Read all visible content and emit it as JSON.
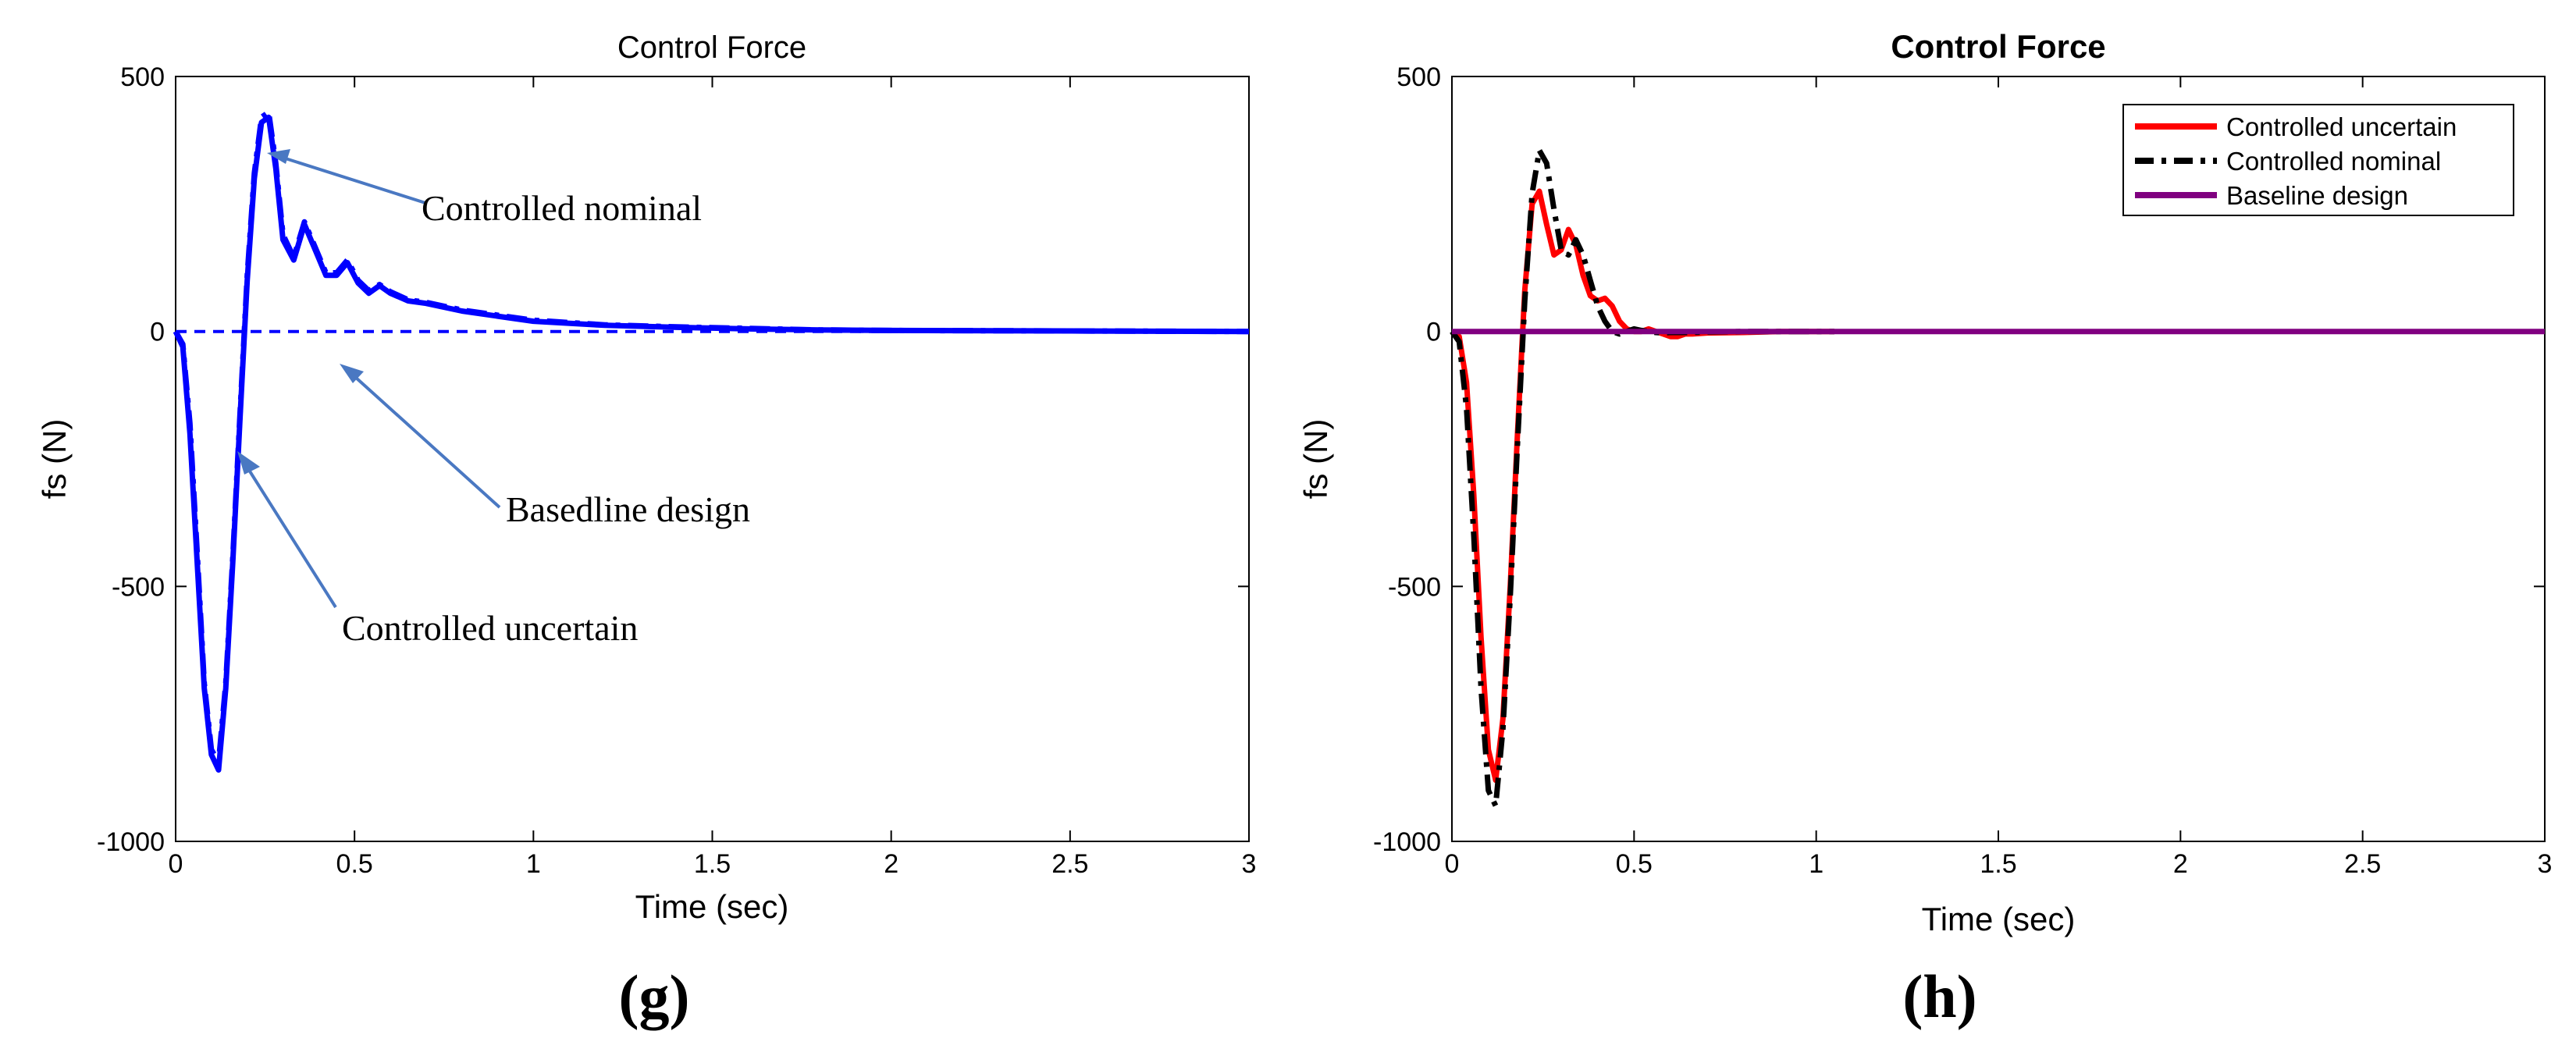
{
  "chart_data": [
    {
      "type": "line",
      "title": "Control Force",
      "xlabel": "Time (sec)",
      "ylabel": "fs (N)",
      "xlim": [
        0,
        3
      ],
      "ylim": [
        -1000,
        500
      ],
      "x_ticks": [
        "0",
        "0.5",
        "1",
        "1.5",
        "2",
        "2.5",
        "3"
      ],
      "y_ticks": [
        "-1000",
        "-500",
        "0",
        "500"
      ],
      "panel_label": "(g)",
      "grid": false,
      "series": [
        {
          "color": "#0000ff",
          "style": "solid",
          "x": [
            0,
            0.02,
            0.04,
            0.06,
            0.08,
            0.1,
            0.12,
            0.14,
            0.16,
            0.18,
            0.2,
            0.22,
            0.24,
            0.26,
            0.28,
            0.3,
            0.33,
            0.36,
            0.39,
            0.42,
            0.45,
            0.48,
            0.51,
            0.54,
            0.57,
            0.6,
            0.65,
            0.7,
            0.8,
            0.9,
            1.0,
            1.2,
            1.4,
            1.6,
            1.8,
            2.0,
            2.5,
            3.0
          ],
          "y": [
            0,
            -30,
            -200,
            -450,
            -700,
            -830,
            -860,
            -700,
            -450,
            -170,
            100,
            300,
            410,
            420,
            320,
            180,
            140,
            210,
            160,
            110,
            110,
            135,
            95,
            75,
            90,
            75,
            60,
            55,
            40,
            30,
            20,
            12,
            8,
            5,
            3,
            2,
            1,
            0
          ]
        },
        {
          "color": "#0000ff",
          "style": "dash-dot",
          "x": [
            0,
            0.02,
            0.04,
            0.06,
            0.08,
            0.1,
            0.12,
            0.14,
            0.16,
            0.18,
            0.2,
            0.22,
            0.24,
            0.26,
            0.28,
            0.3,
            0.33,
            0.36,
            0.39,
            0.42,
            0.45,
            0.48,
            0.51,
            0.54,
            0.57,
            0.6,
            0.65,
            0.7,
            0.8,
            0.9,
            1.0,
            1.2,
            1.4,
            1.6,
            1.8,
            2.0,
            2.5,
            3.0
          ],
          "y": [
            0,
            -25,
            -180,
            -430,
            -690,
            -820,
            -845,
            -690,
            -440,
            -160,
            110,
            310,
            420,
            430,
            330,
            190,
            145,
            215,
            165,
            115,
            115,
            140,
            100,
            80,
            92,
            78,
            62,
            57,
            42,
            32,
            22,
            13,
            9,
            6,
            3,
            2,
            1,
            0
          ]
        },
        {
          "color": "#0000ff",
          "style": "dashed",
          "x": [
            0,
            3
          ],
          "y": [
            0,
            0
          ]
        }
      ],
      "annotations": [
        {
          "text": "Controlled nominal",
          "arrow_to": [
            0.25,
            355
          ]
        },
        {
          "text": "Basedline design",
          "arrow_to": [
            0.46,
            -70
          ]
        },
        {
          "text": "Controlled uncertain",
          "arrow_to": [
            0.18,
            -240
          ]
        }
      ]
    },
    {
      "type": "line",
      "title": "Control Force",
      "xlabel": "Time (sec)",
      "ylabel": "fs (N)",
      "xlim": [
        0,
        3
      ],
      "ylim": [
        -1000,
        500
      ],
      "x_ticks": [
        "0",
        "0.5",
        "1",
        "1.5",
        "2",
        "2.5",
        "3"
      ],
      "y_ticks": [
        "-1000",
        "-500",
        "0",
        "500"
      ],
      "panel_label": "(h)",
      "grid": false,
      "legend": "top-right",
      "series": [
        {
          "name": "Controlled uncertain",
          "color": "#ff0000",
          "style": "solid",
          "x": [
            0,
            0.02,
            0.04,
            0.06,
            0.08,
            0.1,
            0.12,
            0.14,
            0.16,
            0.18,
            0.2,
            0.22,
            0.24,
            0.26,
            0.28,
            0.3,
            0.32,
            0.34,
            0.36,
            0.38,
            0.4,
            0.42,
            0.44,
            0.46,
            0.48,
            0.5,
            0.52,
            0.54,
            0.56,
            0.58,
            0.6,
            0.62,
            0.64,
            0.66,
            0.7,
            0.8,
            0.9,
            1.0,
            1.05
          ],
          "y": [
            0,
            -10,
            -100,
            -320,
            -600,
            -820,
            -880,
            -760,
            -500,
            -200,
            80,
            250,
            275,
            210,
            150,
            160,
            200,
            170,
            110,
            70,
            60,
            65,
            50,
            20,
            5,
            0,
            0,
            5,
            0,
            -5,
            -10,
            -10,
            -5,
            -5,
            -3,
            -2,
            0,
            0,
            0
          ]
        },
        {
          "name": "Controlled nominal",
          "color": "#000000",
          "style": "dash-dot",
          "x": [
            0,
            0.02,
            0.04,
            0.06,
            0.08,
            0.1,
            0.12,
            0.14,
            0.16,
            0.18,
            0.2,
            0.22,
            0.24,
            0.26,
            0.28,
            0.3,
            0.32,
            0.34,
            0.36,
            0.38,
            0.4,
            0.42,
            0.44,
            0.46,
            0.48,
            0.5,
            0.52,
            0.54,
            0.56,
            0.58,
            0.6,
            0.65,
            0.7,
            0.8,
            0.9,
            1.0,
            1.05
          ],
          "y": [
            0,
            -20,
            -150,
            -400,
            -700,
            -900,
            -930,
            -780,
            -520,
            -220,
            60,
            270,
            355,
            330,
            240,
            160,
            150,
            180,
            150,
            100,
            50,
            20,
            0,
            -5,
            0,
            5,
            2,
            0,
            -2,
            -3,
            -2,
            -2,
            -1,
            0,
            0,
            0,
            0
          ]
        },
        {
          "name": "Baseline design",
          "color": "#800080",
          "style": "solid",
          "x": [
            0,
            3
          ],
          "y": [
            0,
            0
          ]
        }
      ]
    }
  ]
}
